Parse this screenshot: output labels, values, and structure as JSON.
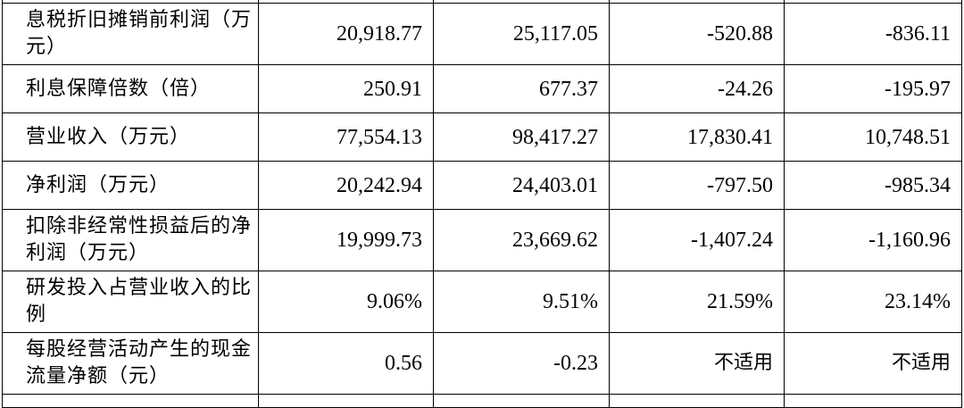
{
  "table": {
    "rows": [
      {
        "label": "息税折旧摊销前利润（万元）",
        "values": [
          "20,918.77",
          "25,117.05",
          "-520.88",
          "-836.11"
        ]
      },
      {
        "label": "利息保障倍数（倍）",
        "values": [
          "250.91",
          "677.37",
          "-24.26",
          "-195.97"
        ]
      },
      {
        "label": "营业收入（万元）",
        "values": [
          "77,554.13",
          "98,417.27",
          "17,830.41",
          "10,748.51"
        ]
      },
      {
        "label": "净利润（万元）",
        "values": [
          "20,242.94",
          "24,403.01",
          "-797.50",
          "-985.34"
        ]
      },
      {
        "label": "扣除非经常性损益后的净利润（万元）",
        "values": [
          "19,999.73",
          "23,669.62",
          "-1,407.24",
          "-1,160.96"
        ]
      },
      {
        "label": "研发投入占营业收入的比例",
        "values": [
          "9.06%",
          "9.51%",
          "21.59%",
          "23.14%"
        ]
      },
      {
        "label": "每股经营活动产生的现金流量净额（元）",
        "values": [
          "0.56",
          "-0.23",
          "不适用",
          "不适用"
        ]
      }
    ]
  }
}
